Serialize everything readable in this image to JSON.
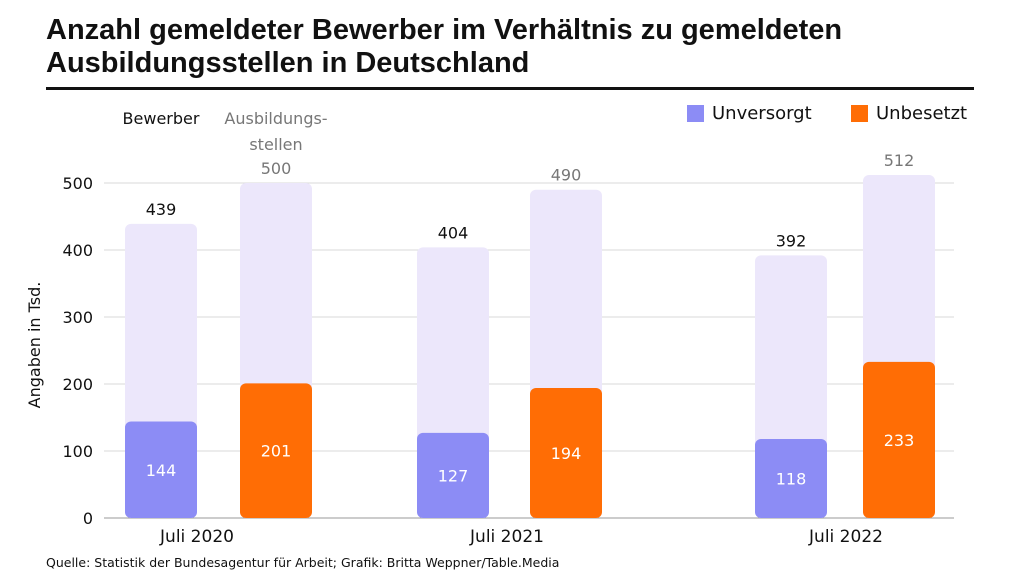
{
  "title": "Anzahl gemeldeter Bewerber im Verhältnis zu gemeldeten Ausbildungsstellen in Deutschland",
  "source": "Quelle: Statistik der Bundesagentur für Arbeit; Grafik: Britta Weppner/Table.Media",
  "colors": {
    "unversorgt": "#8C8CF5",
    "unbesetzt": "#FF6D05",
    "total_bg": "#ECE7FB",
    "grid": "#d9d9d9",
    "text_dark": "#111111",
    "text_grey": "#777777"
  },
  "chart_data": {
    "type": "bar",
    "title": "Anzahl gemeldeter Bewerber im Verhältnis zu gemeldeten Ausbildungsstellen in Deutschland",
    "ylabel": "Angaben in Tsd.",
    "xlabel": "",
    "ylim": [
      0,
      500
    ],
    "yticks": [
      0,
      100,
      200,
      300,
      400,
      500
    ],
    "grid": true,
    "categories": [
      "Juli 2020",
      "Juli 2021",
      "Juli 2022"
    ],
    "column_labels": {
      "bewerber": "Bewerber",
      "stellen_line1": "Ausbildungs-",
      "stellen_line2": "stellen"
    },
    "legend": {
      "unversorgt": "Unversorgt",
      "unbesetzt": "Unbesetzt"
    },
    "series": [
      {
        "name": "Bewerber",
        "values": [
          439,
          404,
          392
        ]
      },
      {
        "name": "Unversorgt",
        "values": [
          144,
          127,
          118
        ]
      },
      {
        "name": "Ausbildungsstellen",
        "values": [
          500,
          490,
          512
        ]
      },
      {
        "name": "Unbesetzt",
        "values": [
          201,
          194,
          233
        ]
      }
    ]
  }
}
